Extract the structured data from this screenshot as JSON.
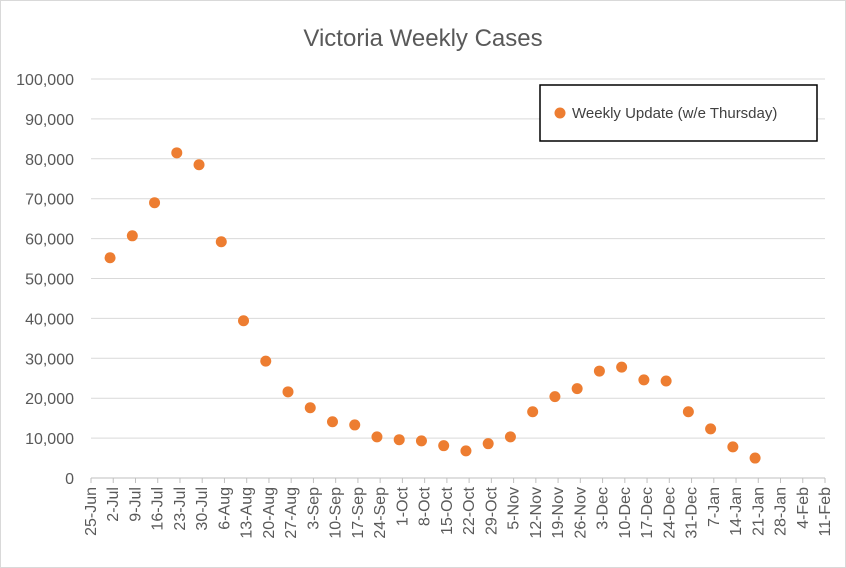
{
  "chart_data": {
    "type": "scatter",
    "title": "Victoria Weekly Cases",
    "xlabel": "",
    "ylabel": "",
    "categories": [
      "25-Jun",
      "2-Jul",
      "9-Jul",
      "16-Jul",
      "23-Jul",
      "30-Jul",
      "6-Aug",
      "13-Aug",
      "20-Aug",
      "27-Aug",
      "3-Sep",
      "10-Sep",
      "17-Sep",
      "24-Sep",
      "1-Oct",
      "8-Oct",
      "15-Oct",
      "22-Oct",
      "29-Oct",
      "5-Nov",
      "12-Nov",
      "19-Nov",
      "26-Nov",
      "3-Dec",
      "10-Dec",
      "17-Dec",
      "24-Dec",
      "31-Dec",
      "7-Jan",
      "14-Jan",
      "21-Jan",
      "28-Jan",
      "4-Feb",
      "11-Feb"
    ],
    "ylim": [
      0,
      100000
    ],
    "yticks": [
      0,
      10000,
      20000,
      30000,
      40000,
      50000,
      60000,
      70000,
      80000,
      90000,
      100000
    ],
    "ytick_labels": [
      "0",
      "10,000",
      "20,000",
      "30,000",
      "40,000",
      "50,000",
      "60,000",
      "70,000",
      "80,000",
      "90,000",
      "100,000"
    ],
    "grid": "horizontal",
    "legend_position": "top-right",
    "colors": {
      "marker": "#ed7d31",
      "grid": "#d9d9d9",
      "axis": "#bfbfbf",
      "text": "#595959"
    },
    "series": [
      {
        "name": "Weekly Update (w/e Thursday)",
        "points": [
          {
            "x": "1-Jul",
            "y": 55200
          },
          {
            "x": "8-Jul",
            "y": 60700
          },
          {
            "x": "15-Jul",
            "y": 69000
          },
          {
            "x": "22-Jul",
            "y": 81500
          },
          {
            "x": "29-Jul",
            "y": 78500
          },
          {
            "x": "5-Aug",
            "y": 59200
          },
          {
            "x": "12-Aug",
            "y": 39400
          },
          {
            "x": "19-Aug",
            "y": 29300
          },
          {
            "x": "26-Aug",
            "y": 21600
          },
          {
            "x": "2-Sep",
            "y": 17600
          },
          {
            "x": "9-Sep",
            "y": 14100
          },
          {
            "x": "16-Sep",
            "y": 13300
          },
          {
            "x": "23-Sep",
            "y": 10300
          },
          {
            "x": "30-Sep",
            "y": 9600
          },
          {
            "x": "7-Oct",
            "y": 9300
          },
          {
            "x": "14-Oct",
            "y": 8100
          },
          {
            "x": "21-Oct",
            "y": 6800
          },
          {
            "x": "28-Oct",
            "y": 8600
          },
          {
            "x": "4-Nov",
            "y": 10300
          },
          {
            "x": "11-Nov",
            "y": 16600
          },
          {
            "x": "18-Nov",
            "y": 20400
          },
          {
            "x": "25-Nov",
            "y": 22400
          },
          {
            "x": "2-Dec",
            "y": 26800
          },
          {
            "x": "9-Dec",
            "y": 27800
          },
          {
            "x": "16-Dec",
            "y": 24600
          },
          {
            "x": "23-Dec",
            "y": 24300
          },
          {
            "x": "30-Dec",
            "y": 16600
          },
          {
            "x": "6-Jan",
            "y": 12300
          },
          {
            "x": "13-Jan",
            "y": 7800
          },
          {
            "x": "20-Jan",
            "y": 5000
          }
        ]
      }
    ]
  }
}
